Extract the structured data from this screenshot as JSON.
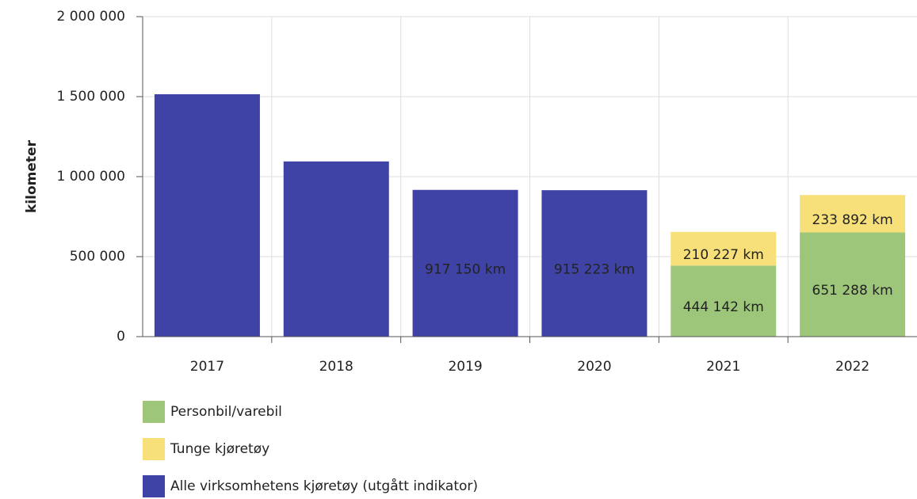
{
  "chart_data": {
    "type": "stacked_bar",
    "y_label": "kilometer",
    "categories": [
      "2017",
      "2018",
      "2019",
      "2020",
      "2021",
      "2022"
    ],
    "series": [
      {
        "name": "Personbil/varebil",
        "color": "#9dc67b",
        "values": [
          null,
          null,
          null,
          null,
          444142,
          651288
        ],
        "value_labels": [
          null,
          null,
          null,
          null,
          "444 142 km",
          "651 288 km"
        ]
      },
      {
        "name": "Tunge kjøretøy",
        "color": "#f7e07a",
        "values": [
          null,
          null,
          null,
          null,
          210227,
          233892
        ],
        "value_labels": [
          null,
          null,
          null,
          null,
          "210 227 km",
          "233 892 km"
        ]
      },
      {
        "name": "Alle virksomhetens kjøretøy (utgått indikator)",
        "color": "#3f43a6",
        "values": [
          1515000,
          1095000,
          917150,
          915223,
          null,
          null
        ],
        "value_labels": [
          null,
          null,
          "917 150 km",
          "915 223 km",
          null,
          null
        ]
      }
    ],
    "ylim": [
      0,
      2000000
    ],
    "yticks": [
      0,
      {
        "value": 500000,
        "label": "500 000"
      },
      {
        "value": 1000000,
        "label": "1 000 000"
      },
      {
        "value": 1500000,
        "label": "1 500 000"
      },
      {
        "value": 2000000,
        "label": "2 000 000"
      }
    ],
    "grid": true
  }
}
